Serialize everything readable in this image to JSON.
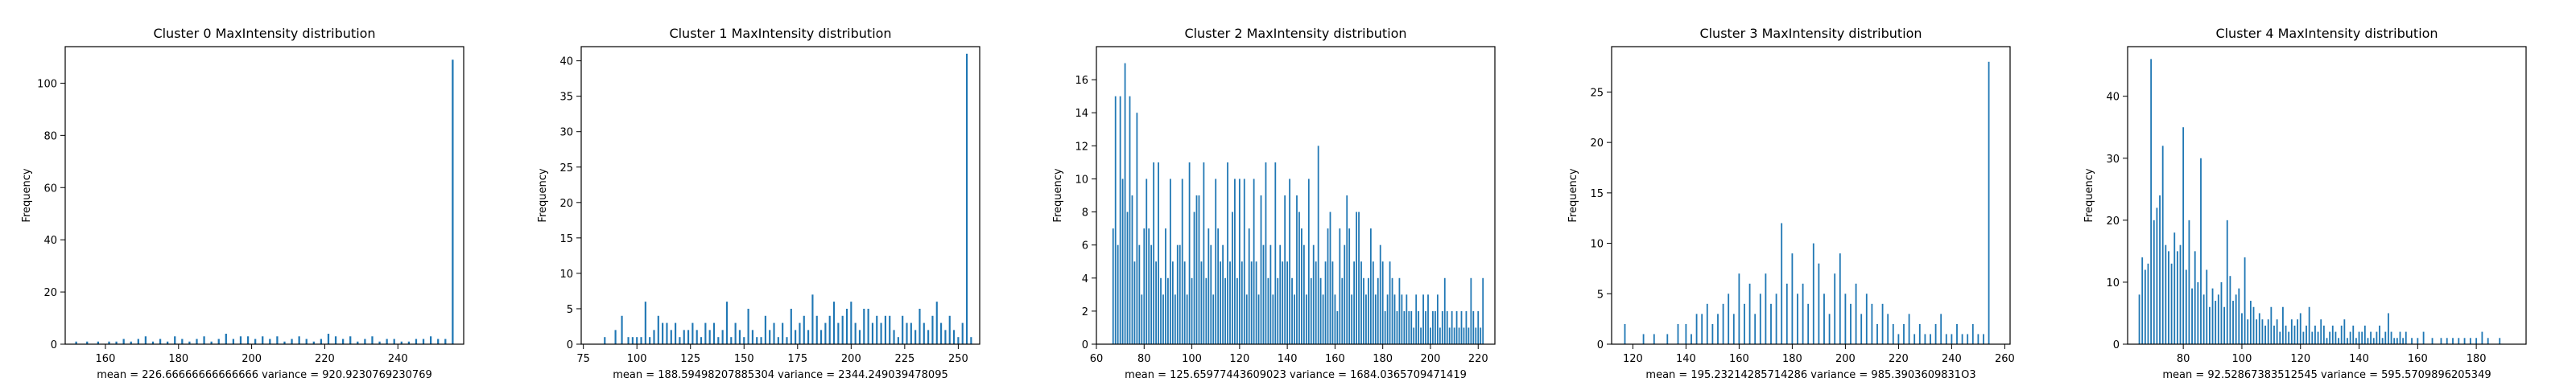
{
  "colors": {
    "bar": "#1f77b4",
    "axis": "#000000",
    "background": "#ffffff"
  },
  "chart_data": [
    {
      "type": "bar",
      "title": "Cluster 0 MaxIntensity distribution",
      "xlabel": "mean = 226.66666666666666    variance = 920.9230769230769",
      "ylabel": "Frequency",
      "xlim": [
        149,
        258
      ],
      "ylim": [
        0,
        114
      ],
      "xticks": [
        160,
        180,
        200,
        220,
        240
      ],
      "yticks": [
        0,
        20,
        40,
        60,
        80,
        100
      ],
      "bar_width": 0.5,
      "x": [
        152,
        155,
        158,
        161,
        163,
        165,
        167,
        169,
        171,
        173,
        175,
        177,
        179,
        181,
        183,
        185,
        187,
        189,
        191,
        193,
        195,
        197,
        199,
        201,
        203,
        205,
        207,
        209,
        211,
        213,
        215,
        217,
        219,
        221,
        223,
        225,
        227,
        229,
        231,
        233,
        235,
        237,
        239,
        241,
        243,
        245,
        247,
        249,
        251,
        253,
        255
      ],
      "values": [
        1,
        1,
        1,
        1,
        1,
        2,
        1,
        2,
        3,
        1,
        2,
        1,
        3,
        2,
        1,
        2,
        3,
        1,
        2,
        4,
        2,
        3,
        3,
        2,
        3,
        2,
        3,
        1,
        2,
        3,
        2,
        1,
        2,
        4,
        3,
        2,
        3,
        1,
        2,
        3,
        1,
        2,
        2,
        1,
        1,
        2,
        2,
        3,
        2,
        2,
        109
      ]
    },
    {
      "type": "bar",
      "title": "Cluster 1 MaxIntensity distribution",
      "xlabel": "mean = 188.59498207885304    variance = 2344.249039478095",
      "ylabel": "Frequency",
      "xlim": [
        74,
        260
      ],
      "ylim": [
        0,
        42
      ],
      "xticks": [
        75,
        100,
        125,
        150,
        175,
        200,
        225,
        250
      ],
      "yticks": [
        0,
        5,
        10,
        15,
        20,
        25,
        30,
        35,
        40
      ],
      "bar_width": 0.8,
      "x": [
        85,
        90,
        93,
        96,
        98,
        100,
        102,
        104,
        106,
        108,
        110,
        112,
        114,
        116,
        118,
        120,
        122,
        124,
        126,
        128,
        130,
        132,
        134,
        136,
        138,
        140,
        142,
        144,
        146,
        148,
        150,
        152,
        154,
        156,
        158,
        160,
        162,
        164,
        166,
        168,
        170,
        172,
        174,
        176,
        178,
        180,
        182,
        184,
        186,
        188,
        190,
        192,
        194,
        196,
        198,
        200,
        202,
        204,
        206,
        208,
        210,
        212,
        214,
        216,
        218,
        220,
        222,
        224,
        226,
        228,
        230,
        232,
        234,
        236,
        238,
        240,
        242,
        244,
        246,
        248,
        250,
        252,
        254,
        256
      ],
      "values": [
        1,
        2,
        4,
        1,
        1,
        1,
        1,
        6,
        1,
        2,
        4,
        3,
        3,
        2,
        3,
        1,
        2,
        2,
        3,
        2,
        1,
        3,
        2,
        3,
        1,
        2,
        6,
        1,
        3,
        2,
        1,
        5,
        2,
        1,
        1,
        4,
        2,
        3,
        1,
        3,
        1,
        5,
        2,
        3,
        4,
        2,
        7,
        4,
        2,
        3,
        4,
        6,
        3,
        4,
        5,
        6,
        3,
        2,
        5,
        5,
        3,
        4,
        3,
        4,
        4,
        2,
        1,
        4,
        3,
        3,
        2,
        5,
        3,
        2,
        4,
        6,
        3,
        2,
        4,
        2,
        1,
        3,
        41,
        1
      ]
    },
    {
      "type": "bar",
      "title": "Cluster 2 MaxIntensity distribution",
      "xlabel": "mean = 125.65977443609023    variance = 1684.0365709471419",
      "ylabel": "Frequency",
      "xlim": [
        60,
        227
      ],
      "ylim": [
        0,
        18
      ],
      "xticks": [
        60,
        80,
        100,
        120,
        140,
        160,
        180,
        200,
        220
      ],
      "yticks": [
        0,
        2,
        4,
        6,
        8,
        10,
        12,
        14,
        16
      ],
      "bar_width": 0.6,
      "x": [
        67,
        68,
        69,
        70,
        71,
        72,
        73,
        74,
        75,
        76,
        77,
        78,
        79,
        80,
        81,
        82,
        83,
        84,
        85,
        86,
        87,
        88,
        89,
        90,
        91,
        92,
        93,
        94,
        95,
        96,
        97,
        98,
        99,
        100,
        101,
        102,
        103,
        104,
        105,
        106,
        107,
        108,
        109,
        110,
        111,
        112,
        113,
        114,
        115,
        116,
        117,
        118,
        119,
        120,
        121,
        122,
        123,
        124,
        125,
        126,
        127,
        128,
        129,
        130,
        131,
        132,
        133,
        134,
        135,
        136,
        137,
        138,
        139,
        140,
        141,
        142,
        143,
        144,
        145,
        146,
        147,
        148,
        149,
        150,
        151,
        152,
        153,
        154,
        155,
        156,
        157,
        158,
        159,
        160,
        161,
        162,
        163,
        164,
        165,
        166,
        167,
        168,
        169,
        170,
        171,
        172,
        173,
        174,
        175,
        176,
        177,
        178,
        179,
        180,
        181,
        182,
        183,
        184,
        185,
        186,
        187,
        188,
        189,
        190,
        191,
        192,
        193,
        194,
        195,
        196,
        197,
        198,
        199,
        200,
        201,
        202,
        203,
        204,
        205,
        206,
        207,
        208,
        209,
        210,
        211,
        212,
        213,
        214,
        215,
        216,
        217,
        218,
        219,
        220,
        221,
        222
      ],
      "values": [
        7,
        15,
        6,
        15,
        10,
        17,
        8,
        15,
        9,
        5,
        14,
        6,
        3,
        7,
        10,
        7,
        6,
        11,
        5,
        11,
        4,
        3,
        7,
        4,
        10,
        5,
        3,
        6,
        6,
        10,
        5,
        3,
        11,
        4,
        8,
        9,
        9,
        5,
        11,
        4,
        7,
        6,
        3,
        10,
        7,
        5,
        6,
        4,
        11,
        5,
        8,
        10,
        4,
        10,
        5,
        10,
        3,
        7,
        5,
        10,
        5,
        3,
        9,
        6,
        11,
        4,
        6,
        3,
        11,
        4,
        6,
        5,
        9,
        5,
        10,
        4,
        3,
        9,
        8,
        7,
        6,
        3,
        10,
        4,
        6,
        5,
        12,
        4,
        3,
        5,
        7,
        8,
        5,
        3,
        2,
        7,
        4,
        6,
        9,
        7,
        3,
        5,
        8,
        8,
        5,
        4,
        3,
        4,
        7,
        5,
        3,
        4,
        6,
        5,
        2,
        3,
        5,
        4,
        3,
        2,
        4,
        3,
        2,
        3,
        2,
        2,
        1,
        3,
        2,
        1,
        3,
        2,
        3,
        1,
        2,
        2,
        3,
        1,
        2,
        4,
        2,
        1,
        2,
        1,
        2,
        1,
        2,
        1,
        2,
        1,
        4,
        2,
        1,
        2,
        1,
        4
      ]
    },
    {
      "type": "bar",
      "title": "Cluster 3 MaxIntensity distribution",
      "xlabel": "mean = 195.23214285714286    variance = 985.3903609831O3",
      "ylabel": "Frequency",
      "xlim": [
        112,
        262
      ],
      "ylim": [
        0,
        29.5
      ],
      "xticks": [
        120,
        140,
        160,
        180,
        200,
        220,
        240,
        260
      ],
      "yticks": [
        0,
        5,
        10,
        15,
        20,
        25
      ],
      "bar_width": 0.55,
      "x": [
        117,
        124,
        128,
        133,
        137,
        140,
        142,
        144,
        146,
        148,
        150,
        152,
        154,
        156,
        158,
        160,
        162,
        164,
        166,
        168,
        170,
        172,
        174,
        176,
        178,
        180,
        182,
        184,
        186,
        188,
        190,
        192,
        194,
        196,
        198,
        200,
        202,
        204,
        206,
        208,
        210,
        212,
        214,
        216,
        218,
        220,
        222,
        224,
        226,
        228,
        230,
        232,
        234,
        236,
        238,
        240,
        242,
        244,
        246,
        248,
        250,
        252,
        254
      ],
      "values": [
        2,
        1,
        1,
        1,
        2,
        2,
        1,
        3,
        3,
        4,
        2,
        3,
        4,
        5,
        3,
        7,
        4,
        6,
        3,
        5,
        7,
        4,
        5,
        12,
        6,
        9,
        5,
        6,
        4,
        10,
        8,
        5,
        3,
        7,
        9,
        5,
        4,
        6,
        3,
        5,
        4,
        2,
        4,
        3,
        2,
        1,
        2,
        3,
        1,
        2,
        1,
        1,
        2,
        3,
        1,
        1,
        2,
        1,
        1,
        2,
        1,
        1,
        28
      ]
    },
    {
      "type": "bar",
      "title": "Cluster 4 MaxIntensity distribution",
      "xlabel": "mean = 92.52867383512545    variance = 595.5709896205349",
      "ylabel": "Frequency",
      "xlim": [
        61,
        197
      ],
      "ylim": [
        0,
        48
      ],
      "xticks": [
        80,
        100,
        120,
        140,
        160,
        180
      ],
      "yticks": [
        0,
        10,
        20,
        30,
        40
      ],
      "bar_width": 0.5,
      "x": [
        65,
        66,
        67,
        68,
        69,
        70,
        71,
        72,
        73,
        74,
        75,
        76,
        77,
        78,
        79,
        80,
        81,
        82,
        83,
        84,
        85,
        86,
        87,
        88,
        89,
        90,
        91,
        92,
        93,
        94,
        95,
        96,
        97,
        98,
        99,
        100,
        101,
        102,
        103,
        104,
        105,
        106,
        107,
        108,
        109,
        110,
        111,
        112,
        113,
        114,
        115,
        116,
        117,
        118,
        119,
        120,
        121,
        122,
        123,
        124,
        125,
        126,
        127,
        128,
        129,
        130,
        131,
        132,
        133,
        134,
        135,
        136,
        137,
        138,
        139,
        140,
        141,
        142,
        143,
        144,
        145,
        146,
        147,
        148,
        149,
        150,
        151,
        152,
        153,
        154,
        155,
        156,
        158,
        160,
        162,
        165,
        168,
        170,
        172,
        174,
        176,
        178,
        180,
        182,
        184,
        188
      ],
      "values": [
        8,
        14,
        12,
        13,
        46,
        20,
        22,
        24,
        32,
        16,
        15,
        13,
        18,
        15,
        16,
        35,
        12,
        20,
        9,
        15,
        10,
        30,
        8,
        12,
        6,
        9,
        7,
        8,
        10,
        6,
        20,
        11,
        7,
        8,
        9,
        5,
        14,
        4,
        7,
        6,
        4,
        5,
        4,
        3,
        4,
        6,
        3,
        4,
        2,
        6,
        3,
        2,
        4,
        3,
        4,
        5,
        2,
        3,
        6,
        2,
        3,
        2,
        4,
        3,
        1,
        2,
        3,
        2,
        1,
        3,
        4,
        1,
        2,
        3,
        1,
        2,
        2,
        3,
        1,
        2,
        1,
        2,
        3,
        1,
        2,
        5,
        2,
        1,
        1,
        2,
        1,
        2,
        1,
        1,
        2,
        1,
        1,
        1,
        1,
        1,
        1,
        1,
        1,
        2,
        1,
        1
      ]
    }
  ]
}
